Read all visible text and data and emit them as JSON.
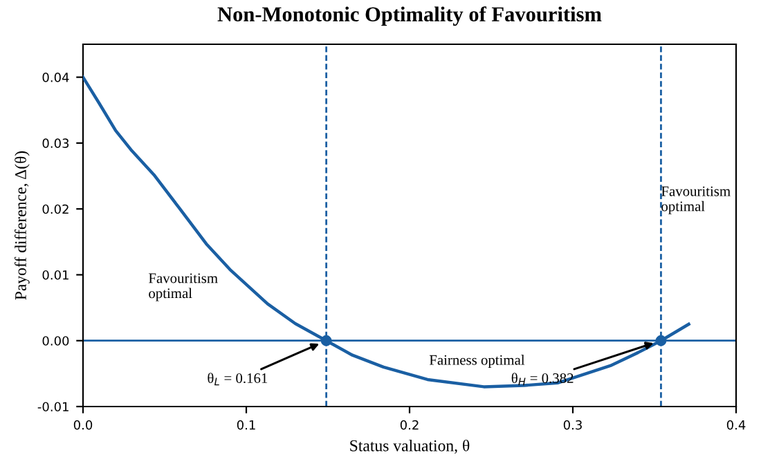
{
  "chart_data": {
    "type": "line",
    "title": "Non-Monotonic Optimality of Favouritism",
    "xlabel": "Status valuation, θ",
    "ylabel": "Payoff difference, Δ(θ)",
    "series": [
      {
        "color": "#1a5fa3",
        "x": [
          0,
          0.01,
          0.02,
          0.03,
          0.0434,
          0.06,
          0.0755,
          0.09,
          0.113,
          0.13,
          0.149,
          0.165,
          0.184,
          0.211,
          0.2455,
          0.27,
          0.291,
          0.323,
          0.34,
          0.354,
          0.371
        ],
        "values": [
          0.04,
          0.036,
          0.0319,
          0.0288,
          0.0252,
          0.0198,
          0.0147,
          0.0108,
          0.0056,
          0.0026,
          0,
          -0.0022,
          -0.004,
          -0.0059,
          -0.007,
          -0.0068,
          -0.0064,
          -0.0038,
          -0.0018,
          0,
          0.0025
        ]
      },
      {
        "type": "scatter",
        "color": "#1a5fa3",
        "x": [
          0.149,
          0.354
        ],
        "values": [
          0,
          0
        ]
      }
    ],
    "xlim": [
      0,
      0.4
    ],
    "ylim": [
      -0.01,
      0.045
    ],
    "xticks": [
      {
        "value": 0,
        "label": "0.0"
      },
      {
        "value": 0.1,
        "label": "0.1"
      },
      {
        "value": 0.2,
        "label": "0.2"
      },
      {
        "value": 0.3,
        "label": "0.3"
      },
      {
        "value": 0.4,
        "label": "0.4"
      }
    ],
    "yticks": [
      {
        "value": -0.01,
        "label": "-0.01"
      },
      {
        "value": 0,
        "label": "0.00"
      },
      {
        "value": 0.01,
        "label": "0.01"
      },
      {
        "value": 0.02,
        "label": "0.02"
      },
      {
        "value": 0.03,
        "label": "0.03"
      },
      {
        "value": 0.04,
        "label": "0.04"
      }
    ],
    "ref_lines": [
      {
        "axis": "y",
        "value": 0,
        "color": "#1a5fa3",
        "line_style": "solid"
      },
      {
        "axis": "x",
        "value": 0.149,
        "color": "#1a5fa3",
        "line_style": "dashed"
      },
      {
        "axis": "x",
        "value": 0.354,
        "color": "#1a5fa3",
        "line_style": "dashed"
      }
    ],
    "annotations": [
      {
        "text": "θ$_{L}$ = 0.161",
        "x": 0.149,
        "y": 0
      },
      {
        "text": "θ$_{H}$ = 0.382",
        "x": 0.354,
        "y": 0
      },
      "Favouritism\noptimal",
      "Fairness optimal",
      "Favouritism\noptimal"
    ],
    "grid": false,
    "legend": false
  }
}
